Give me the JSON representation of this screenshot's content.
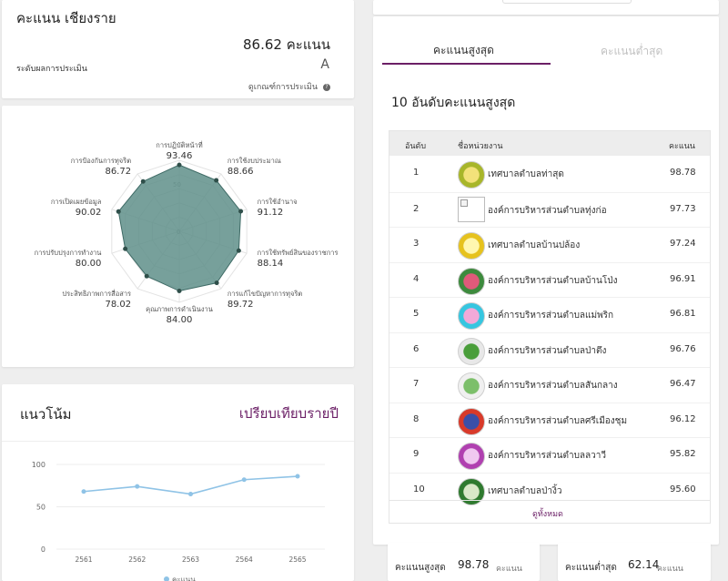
{
  "score_card": {
    "title": "คะแนน เชียงราย",
    "score": "86.62 คะแนน",
    "level_label": "ระดับผลการประเมิน",
    "level_value": "A",
    "criteria_link": "ดูเกณฑ์การประเมิน",
    "help_icon": "question-circle-icon"
  },
  "radar": {
    "center_label": "0",
    "ring_label": "50",
    "fill_color": "#5f8f8a",
    "axes": [
      {
        "name": "การปฏิบัติหน้าที่",
        "value": "93.46"
      },
      {
        "name": "การใช้งบประมาณ",
        "value": "88.66"
      },
      {
        "name": "การใช้อำนาจ",
        "value": "91.12"
      },
      {
        "name": "การใช้ทรัพย์สินของราชการ",
        "value": "88.14"
      },
      {
        "name": "การแก้ไขปัญหาการทุจริต",
        "value": "89.72"
      },
      {
        "name": "คุณภาพการดำเนินงาน",
        "value": "84.00"
      },
      {
        "name": "ประสิทธิภาพการสื่อสาร",
        "value": "78.02"
      },
      {
        "name": "การปรับปรุงการทำงาน",
        "value": "80.00"
      },
      {
        "name": "การเปิดเผยข้อมูล",
        "value": "90.02"
      },
      {
        "name": "การป้องกันการทุจริต",
        "value": "86.72"
      }
    ]
  },
  "trend": {
    "title": "แนวโน้ม",
    "compare_link": "เปรียบเทียบรายปี",
    "legend_label": "คะแนน",
    "line_color": "#8fc3e6"
  },
  "chart_data": {
    "type": "line",
    "x": [
      "2561",
      "2562",
      "2563",
      "2564",
      "2565"
    ],
    "series": [
      {
        "name": "คะแนน",
        "values": [
          68,
          74,
          65,
          82,
          86
        ]
      }
    ],
    "ylim": [
      0,
      100
    ],
    "yticks": [
      "0",
      "50",
      "100"
    ],
    "grid": true
  },
  "tabs": [
    {
      "label": "คะแนนสูงสุด",
      "active": true
    },
    {
      "label": "คะแนนต่ำสุด",
      "active": false
    }
  ],
  "top10": {
    "title": "10 อันดับคะแนนสูงสุด",
    "col_rank": "อันดับ",
    "col_name": "ชื่อหน่วยงาน",
    "col_score": "คะแนน",
    "view_all": "ดูทั้งหมด",
    "rows": [
      {
        "rank": "1",
        "name": "เทศบาลตำบลท่าสุด",
        "score": "98.78",
        "logo": "seal-icon",
        "color": "#a8b62a",
        "inner": "#f3e27a"
      },
      {
        "rank": "2",
        "name": "องค์การบริหารส่วนตำบลทุ่งก่อ",
        "score": "97.73",
        "logo": "broken-image-icon",
        "color": "",
        "inner": ""
      },
      {
        "rank": "3",
        "name": "เทศบาลตำบลบ้านปล้อง",
        "score": "97.24",
        "logo": "seal-icon",
        "color": "#e6c21e",
        "inner": "#fff7b0"
      },
      {
        "rank": "4",
        "name": "องค์การบริหารส่วนตำบลบ้านโป่ง",
        "score": "96.91",
        "logo": "seal-icon",
        "color": "#3d8a3d",
        "inner": "#e05a7a"
      },
      {
        "rank": "5",
        "name": "องค์การบริหารส่วนตำบลแม่พริก",
        "score": "96.81",
        "logo": "seal-icon",
        "color": "#36c6e0",
        "inner": "#f2a9d8"
      },
      {
        "rank": "6",
        "name": "องค์การบริหารส่วนตำบลป่าตึง",
        "score": "96.76",
        "logo": "seal-icon",
        "color": "#e8e8e8",
        "inner": "#4a9e3a"
      },
      {
        "rank": "7",
        "name": "องค์การบริหารส่วนตำบลสันกลาง",
        "score": "96.47",
        "logo": "seal-icon",
        "color": "#f0f0f0",
        "inner": "#7cbf6a"
      },
      {
        "rank": "8",
        "name": "องค์การบริหารส่วนตำบลศรีเมืองชุม",
        "score": "96.12",
        "logo": "seal-icon",
        "color": "#d83a2a",
        "inner": "#3a4fa8"
      },
      {
        "rank": "9",
        "name": "องค์การบริหารส่วนตำบลลวาวี",
        "score": "95.82",
        "logo": "seal-icon",
        "color": "#b040b0",
        "inner": "#f0c8f0"
      },
      {
        "rank": "10",
        "name": "เทศบาลตำบลป่างิ้ว",
        "score": "95.60",
        "logo": "seal-icon",
        "color": "#2f7a2f",
        "inner": "#d9e8c8"
      }
    ]
  },
  "summary": {
    "max_label": "คะแนนสูงสุด",
    "max_value": "98.78",
    "max_unit": "คะแนน",
    "min_label": "คะแนนต่ำสุด",
    "min_value": "62.14",
    "min_unit": "คะแนน"
  },
  "accent": "#6b1f66"
}
